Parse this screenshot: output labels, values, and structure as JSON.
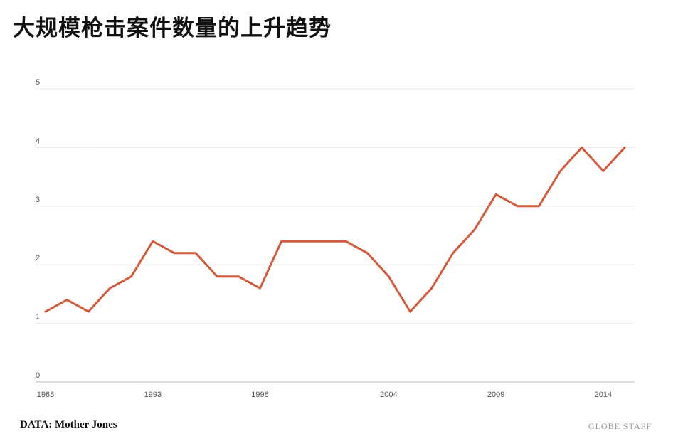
{
  "header": {
    "title": "大规模枪击案件数量的上升趋势"
  },
  "footer": {
    "source": "DATA: Mother Jones",
    "credit": "GLOBE STAFF"
  },
  "colors": {
    "line": "#d45a3c",
    "grid": "#d8d8d8",
    "tick_text": "#555555"
  },
  "chart_data": {
    "type": "line",
    "title": "大规模枪击案件数量的上升趋势",
    "xlabel": "",
    "ylabel": "",
    "xlim": [
      1988,
      2015
    ],
    "ylim": [
      0,
      5
    ],
    "x_ticks": [
      1988,
      1993,
      1998,
      2004,
      2009,
      2014
    ],
    "y_ticks": [
      0,
      1,
      2,
      3,
      4,
      5
    ],
    "grid": "horizontal",
    "series": [
      {
        "x": [
          1988,
          1989,
          1990,
          1991,
          1992,
          1993,
          1994,
          1995,
          1996,
          1997,
          1998,
          1999,
          2000,
          2001,
          2002,
          2003,
          2004,
          2005,
          2006,
          2007,
          2008,
          2009,
          2010,
          2011,
          2012,
          2013,
          2014,
          2015
        ],
        "values": [
          1.2,
          1.4,
          1.2,
          1.6,
          1.8,
          2.4,
          2.2,
          2.2,
          1.8,
          1.8,
          1.6,
          2.4,
          2.4,
          2.4,
          2.4,
          2.2,
          1.8,
          1.2,
          1.6,
          2.2,
          2.6,
          3.2,
          3.0,
          3.0,
          3.6,
          4.0,
          3.6,
          4.0
        ]
      }
    ]
  }
}
